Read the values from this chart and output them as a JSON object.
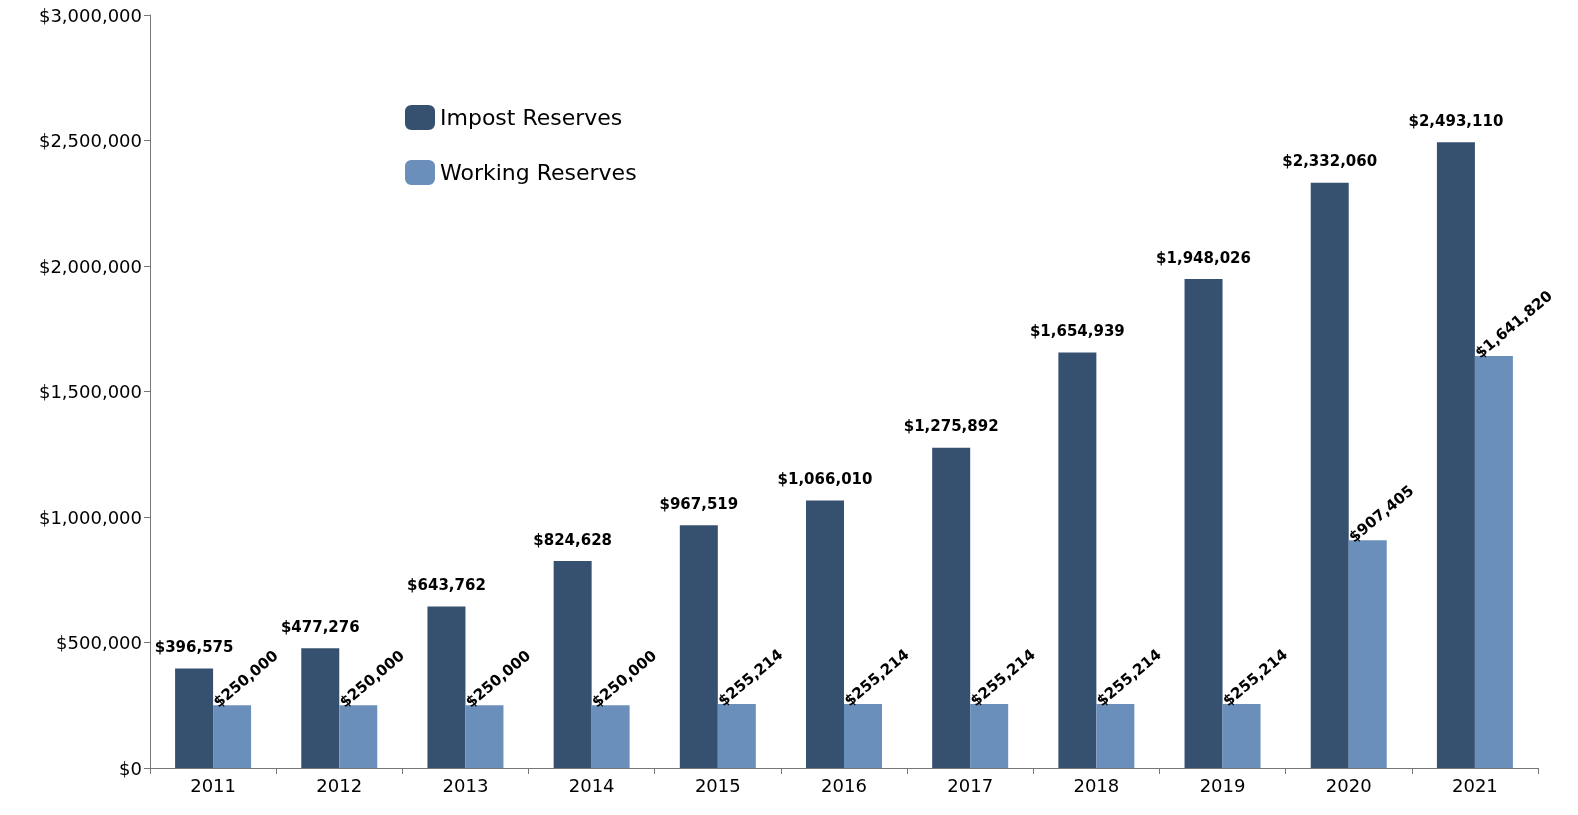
{
  "chart_data": {
    "type": "bar",
    "categories": [
      "2011",
      "2012",
      "2013",
      "2014",
      "2015",
      "2016",
      "2017",
      "2018",
      "2019",
      "2020",
      "2021"
    ],
    "series": [
      {
        "name": "Impost Reserves",
        "color": "#36506f",
        "values": [
          396575,
          477276,
          643762,
          824628,
          967519,
          1066010,
          1275892,
          1654939,
          1948026,
          2332060,
          2493110
        ],
        "value_labels": [
          "$396,575",
          "$477,276",
          "$643,762",
          "$824,628",
          "$967,519",
          "$1,066,010",
          "$1,275,892",
          "$1,654,939",
          "$1,948,026",
          "$2,332,060",
          "$2,493,110"
        ]
      },
      {
        "name": "Working Reserves",
        "color": "#6b8fbb",
        "values": [
          250000,
          250000,
          250000,
          250000,
          255214,
          255214,
          255214,
          255214,
          255214,
          907405,
          1641820
        ],
        "value_labels": [
          "$250,000",
          "$250,000",
          "$250,000",
          "$250,000",
          "$255,214",
          "$255,214",
          "$255,214",
          "$255,214",
          "$255,214",
          "$907,405",
          "$1,641,820"
        ]
      }
    ],
    "ylim": [
      0,
      3000000
    ],
    "yticks": [
      {
        "value": 0,
        "label": "$0"
      },
      {
        "value": 500000,
        "label": "$500,000"
      },
      {
        "value": 1000000,
        "label": "$1,000,000"
      },
      {
        "value": 1500000,
        "label": "$1,500,000"
      },
      {
        "value": 2000000,
        "label": "$2,000,000"
      },
      {
        "value": 2500000,
        "label": "$2,500,000"
      },
      {
        "value": 3000000,
        "label": "$3,000,000"
      }
    ],
    "grid": false,
    "legend": "top left"
  }
}
